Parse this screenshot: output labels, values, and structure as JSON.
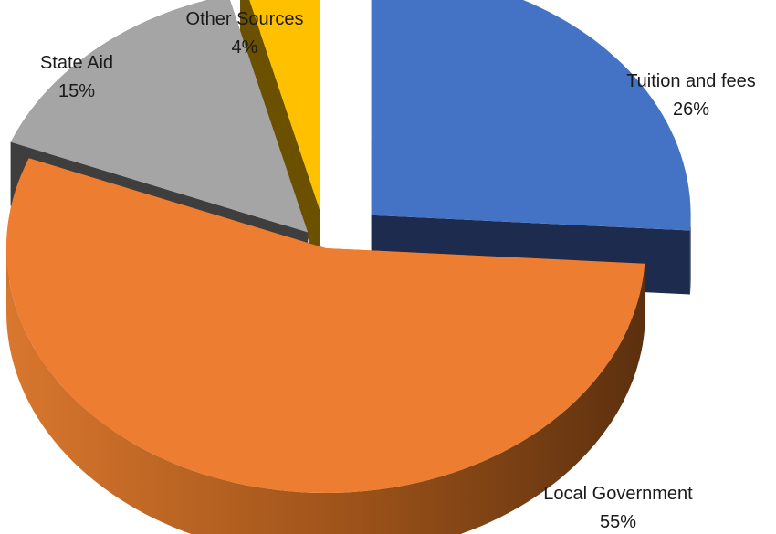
{
  "chart_data": {
    "type": "pie",
    "style": "3d-exploded",
    "title": "",
    "slices": [
      {
        "label": "Tuition and fees",
        "value": 26,
        "value_label": "26%",
        "color": "#4472C4",
        "side_color": "#1F2D52"
      },
      {
        "label": "Local Government",
        "value": 55,
        "value_label": "55%",
        "color": "#ED7D31",
        "side_color": "#8A4412"
      },
      {
        "label": "State Aid",
        "value": 15,
        "value_label": "15%",
        "color": "#A5A5A5",
        "side_color": "#404040"
      },
      {
        "label": "Other Sources",
        "value": 4,
        "value_label": "4%",
        "color": "#FFC000",
        "side_color": "#6B5200"
      }
    ]
  }
}
